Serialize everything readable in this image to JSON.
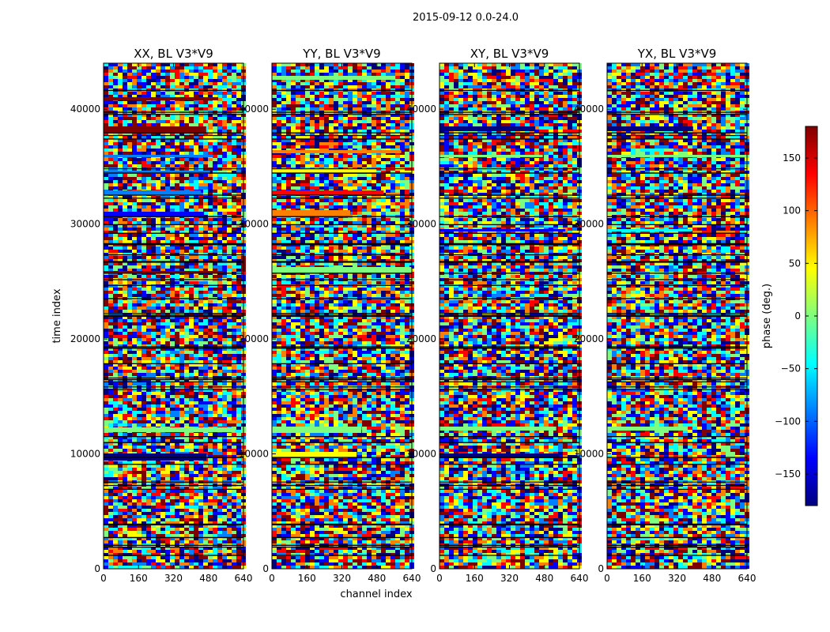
{
  "chart_data": {
    "type": "heatmap",
    "suptitle": "2015-09-12 0.0-24.0",
    "xlabel": "channel index",
    "ylabel": "time index",
    "xlim": [
      0,
      640
    ],
    "ylim": [
      0,
      44000
    ],
    "xticks": [
      "0",
      "160",
      "320",
      "480",
      "640"
    ],
    "yticks": [
      {
        "value": 0,
        "label": "0"
      },
      {
        "value": 10000,
        "label": "10000"
      },
      {
        "value": 20000,
        "label": "20000"
      },
      {
        "value": 30000,
        "label": "30000"
      },
      {
        "value": 40000,
        "label": "40000"
      }
    ],
    "panels": [
      {
        "title": "XX, BL V3*V9"
      },
      {
        "title": "YY, BL V3*V9"
      },
      {
        "title": "XY, BL V3*V9"
      },
      {
        "title": "YX, BL V3*V9"
      }
    ],
    "colorbar": {
      "label": "phase (deg.)",
      "range": [
        -180,
        180
      ],
      "colormap": "jet",
      "ticks": [
        {
          "value": 150,
          "label": "150"
        },
        {
          "value": 100,
          "label": "100"
        },
        {
          "value": 50,
          "label": "50"
        },
        {
          "value": 0,
          "label": "0"
        },
        {
          "value": -50,
          "label": "−50"
        },
        {
          "value": -100,
          "label": "−100"
        },
        {
          "value": -150,
          "label": "−150"
        }
      ]
    },
    "colors": {
      "jet": [
        "#00007f",
        "#0000ff",
        "#007fff",
        "#00ffff",
        "#7fff7f",
        "#ffff00",
        "#ff7f00",
        "#ff0000",
        "#7f0000"
      ]
    }
  }
}
